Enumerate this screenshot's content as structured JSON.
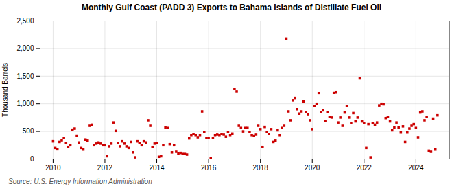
{
  "chart_data": {
    "type": "scatter",
    "title": "Monthly Gulf Coast (PADD 3) Exports to Bahama Islands of Distillate Fuel Oil",
    "ylabel": "Thousand Barrels",
    "source": "Source: U.S. Energy Information Administration",
    "color": "#cc0000",
    "marker": "square",
    "grid": true,
    "xlim": [
      2009.5,
      2025.3
    ],
    "xticks": [
      2010,
      2012,
      2014,
      2016,
      2018,
      2020,
      2022,
      2024
    ],
    "ylim": [
      0,
      2500
    ],
    "yticks": [
      0,
      500,
      {
        "value": 1000,
        "label": "1,000"
      },
      {
        "value": 1500,
        "label": "1,500"
      },
      {
        "value": 2000,
        "label": "2,000"
      },
      {
        "value": 2500,
        "label": "2,500"
      }
    ],
    "x": [
      2010.0,
      2010.083,
      2010.167,
      2010.25,
      2010.333,
      2010.417,
      2010.5,
      2010.583,
      2010.667,
      2010.75,
      2010.833,
      2010.917,
      2011.0,
      2011.083,
      2011.167,
      2011.25,
      2011.333,
      2011.417,
      2011.5,
      2011.583,
      2011.667,
      2011.75,
      2011.833,
      2011.917,
      2012.0,
      2012.083,
      2012.167,
      2012.25,
      2012.333,
      2012.417,
      2012.5,
      2012.583,
      2012.667,
      2012.75,
      2012.833,
      2012.917,
      2013.0,
      2013.083,
      2013.167,
      2013.25,
      2013.333,
      2013.417,
      2013.5,
      2013.583,
      2013.667,
      2013.75,
      2013.833,
      2013.917,
      2014.0,
      2014.083,
      2014.167,
      2014.25,
      2014.333,
      2014.417,
      2014.5,
      2014.583,
      2014.667,
      2014.75,
      2014.833,
      2014.917,
      2015.0,
      2015.083,
      2015.167,
      2015.25,
      2015.333,
      2015.417,
      2015.5,
      2015.583,
      2015.667,
      2015.75,
      2015.833,
      2015.917,
      2016.0,
      2016.083,
      2016.167,
      2016.25,
      2016.333,
      2016.417,
      2016.5,
      2016.583,
      2016.667,
      2016.75,
      2016.833,
      2016.917,
      2017.0,
      2017.083,
      2017.167,
      2017.25,
      2017.333,
      2017.417,
      2017.5,
      2017.583,
      2017.667,
      2017.75,
      2017.833,
      2017.917,
      2018.0,
      2018.083,
      2018.167,
      2018.25,
      2018.333,
      2018.417,
      2018.5,
      2018.583,
      2018.667,
      2018.75,
      2018.833,
      2018.917,
      2019.0,
      2019.083,
      2019.167,
      2019.25,
      2019.333,
      2019.417,
      2019.5,
      2019.583,
      2019.667,
      2019.75,
      2019.833,
      2019.917,
      2020.0,
      2020.083,
      2020.167,
      2020.25,
      2020.333,
      2020.417,
      2020.5,
      2020.583,
      2020.667,
      2020.75,
      2020.833,
      2020.917,
      2021.0,
      2021.083,
      2021.167,
      2021.25,
      2021.333,
      2021.417,
      2021.5,
      2021.583,
      2021.667,
      2021.75,
      2021.833,
      2021.917,
      2022.0,
      2022.083,
      2022.167,
      2022.25,
      2022.333,
      2022.417,
      2022.5,
      2022.583,
      2022.667,
      2022.75,
      2022.833,
      2022.917,
      2023.0,
      2023.083,
      2023.167,
      2023.25,
      2023.333,
      2023.417,
      2023.5,
      2023.583,
      2023.667,
      2023.75,
      2023.833,
      2023.917,
      2024.0,
      2024.083,
      2024.167,
      2024.25,
      2024.333,
      2024.417,
      2024.5,
      2024.583,
      2024.667,
      2024.75,
      2024.833
    ],
    "values": [
      320,
      200,
      175,
      310,
      340,
      380,
      290,
      220,
      250,
      530,
      550,
      420,
      300,
      200,
      170,
      350,
      330,
      600,
      620,
      250,
      280,
      300,
      280,
      250,
      250,
      50,
      230,
      280,
      660,
      510,
      290,
      230,
      320,
      280,
      230,
      200,
      310,
      120,
      30,
      320,
      290,
      250,
      320,
      300,
      700,
      600,
      220,
      280,
      290,
      40,
      50,
      250,
      570,
      560,
      270,
      120,
      250,
      130,
      100,
      110,
      90,
      90,
      80,
      370,
      430,
      450,
      430,
      390,
      430,
      860,
      490,
      380,
      380,
      10,
      380,
      430,
      440,
      430,
      450,
      440,
      400,
      490,
      430,
      460,
      1270,
      1220,
      600,
      560,
      500,
      560,
      560,
      490,
      430,
      420,
      440,
      600,
      540,
      220,
      580,
      490,
      450,
      540,
      310,
      330,
      520,
      430,
      560,
      600,
      2180,
      860,
      700,
      1060,
      1100,
      900,
      820,
      860,
      1040,
      850,
      810,
      700,
      540,
      960,
      1000,
      1190,
      850,
      880,
      690,
      850,
      760,
      750,
      1200,
      1210,
      660,
      750,
      600,
      840,
      960,
      750,
      650,
      830,
      680,
      750,
      1460,
      680,
      650,
      200,
      630,
      30,
      650,
      620,
      660,
      970,
      1000,
      990,
      740,
      760,
      680,
      520,
      570,
      660,
      570,
      480,
      590,
      310,
      480,
      550,
      600,
      630,
      560,
      390,
      840,
      860,
      700,
      760,
      150,
      130,
      730,
      170,
      790
    ]
  }
}
